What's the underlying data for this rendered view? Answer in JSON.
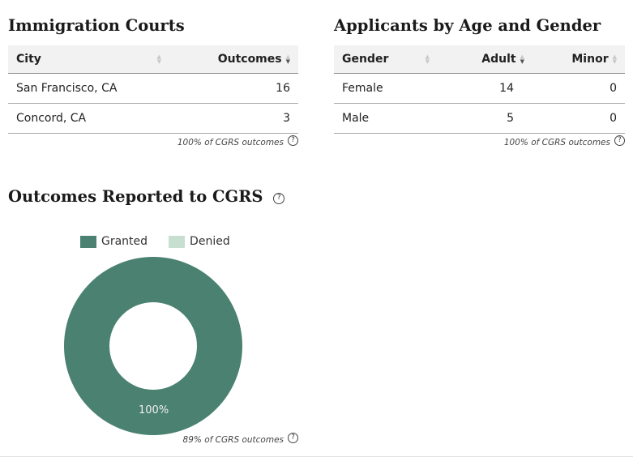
{
  "courts": {
    "title": "Immigration Courts",
    "columns": [
      "City",
      "Outcomes"
    ],
    "rows": [
      {
        "city": "San Francisco, CA",
        "outcomes": "16"
      },
      {
        "city": "Concord, CA",
        "outcomes": "3"
      }
    ],
    "footnote": "100% of CGRS outcomes"
  },
  "applicants": {
    "title": "Applicants by Age and Gender",
    "columns": [
      "Gender",
      "Adult",
      "Minor"
    ],
    "rows": [
      {
        "gender": "Female",
        "adult": "14",
        "minor": "0"
      },
      {
        "gender": "Male",
        "adult": "5",
        "minor": "0"
      }
    ],
    "footnote": "100% of CGRS outcomes"
  },
  "outcomes": {
    "title": "Outcomes Reported to CGRS",
    "footnote": "89% of CGRS outcomes"
  },
  "chart_data": {
    "type": "pie",
    "title": "",
    "categories": [
      "Granted",
      "Denied"
    ],
    "values": [
      100,
      0
    ],
    "labels": [
      "100%"
    ],
    "colors": [
      "#4a8170",
      "#c7dfd0"
    ],
    "legend": "top"
  }
}
